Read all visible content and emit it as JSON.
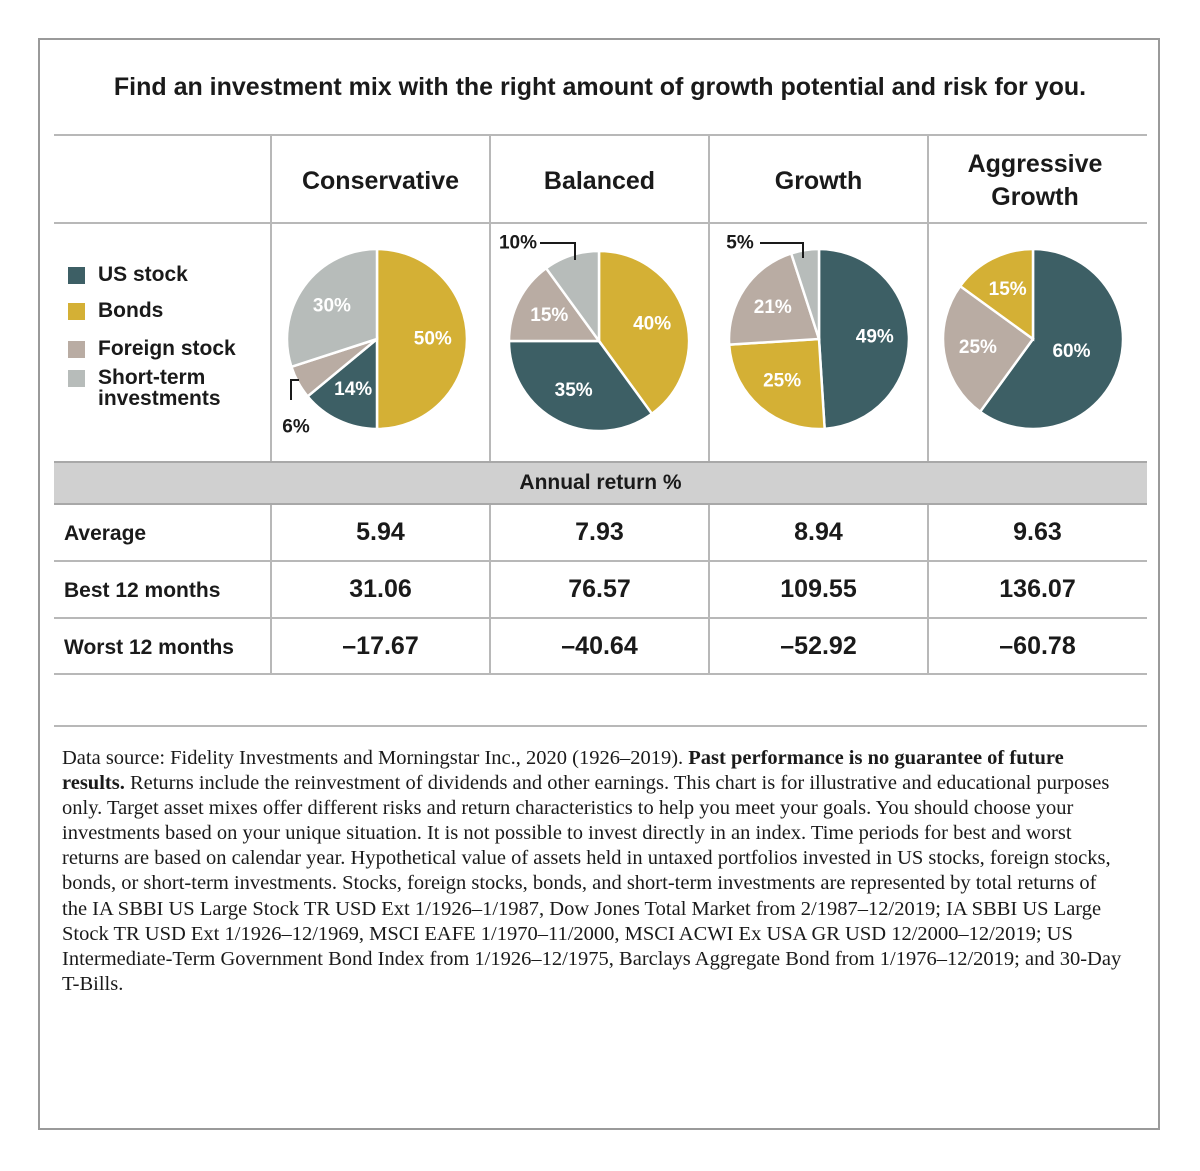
{
  "title": "Find an investment mix with the right amount of growth potential and risk for you.",
  "colors": {
    "us_stock": "#3d5f65",
    "bonds": "#d4b035",
    "foreign_stock": "#b9aca3",
    "short_term": "#b7bcba",
    "band": "#d0d0d0",
    "border": "#b8b8b8"
  },
  "legend": [
    {
      "key": "us_stock",
      "label": "US stock"
    },
    {
      "key": "bonds",
      "label": "Bonds"
    },
    {
      "key": "foreign_stock",
      "label": "Foreign stock"
    },
    {
      "key": "short_term",
      "label": "Short-term investments"
    }
  ],
  "columns": [
    "Conservative",
    "Balanced",
    "Growth",
    "Aggressive Growth"
  ],
  "band_label": "Annual return %",
  "rows": [
    {
      "label": "Average",
      "values": [
        "5.94",
        "7.93",
        "8.94",
        "9.63"
      ]
    },
    {
      "label": "Best 12 months",
      "values": [
        "31.06",
        "76.57",
        "109.55",
        "136.07"
      ]
    },
    {
      "label": "Worst 12 months",
      "values": [
        "–17.67",
        "–40.64",
        "–52.92",
        "–60.78"
      ]
    }
  ],
  "chart_data": [
    {
      "type": "pie",
      "title": "Conservative",
      "slices": [
        {
          "name": "Bonds",
          "key": "bonds",
          "value": 50,
          "label": "50%"
        },
        {
          "name": "US stock",
          "key": "us_stock",
          "value": 14,
          "label": "14%"
        },
        {
          "name": "Foreign stock",
          "key": "foreign_stock",
          "value": 6,
          "label": "6%"
        },
        {
          "name": "Short-term investments",
          "key": "short_term",
          "value": 30,
          "label": "30%"
        }
      ]
    },
    {
      "type": "pie",
      "title": "Balanced",
      "slices": [
        {
          "name": "Bonds",
          "key": "bonds",
          "value": 40,
          "label": "40%"
        },
        {
          "name": "US stock",
          "key": "us_stock",
          "value": 35,
          "label": "35%"
        },
        {
          "name": "Foreign stock",
          "key": "foreign_stock",
          "value": 15,
          "label": "15%"
        },
        {
          "name": "Short-term investments",
          "key": "short_term",
          "value": 10,
          "label": "10%"
        }
      ]
    },
    {
      "type": "pie",
      "title": "Growth",
      "slices": [
        {
          "name": "US stock",
          "key": "us_stock",
          "value": 49,
          "label": "49%"
        },
        {
          "name": "Bonds",
          "key": "bonds",
          "value": 25,
          "label": "25%"
        },
        {
          "name": "Foreign stock",
          "key": "foreign_stock",
          "value": 21,
          "label": "21%"
        },
        {
          "name": "Short-term investments",
          "key": "short_term",
          "value": 5,
          "label": "5%"
        }
      ]
    },
    {
      "type": "pie",
      "title": "Aggressive Growth",
      "slices": [
        {
          "name": "US stock",
          "key": "us_stock",
          "value": 60,
          "label": "60%"
        },
        {
          "name": "Foreign stock",
          "key": "foreign_stock",
          "value": 25,
          "label": "25%"
        },
        {
          "name": "Bonds",
          "key": "bonds",
          "value": 15,
          "label": "15%"
        }
      ]
    }
  ],
  "footnote": {
    "part1": "Data source: Fidelity Investments and Morningstar Inc., 2020 (1926–2019). ",
    "bold": "Past performance is no guarantee of future results.",
    "part2": " Returns include the reinvestment of dividends and other earnings. This chart is for illustrative and educational purposes only. Target asset mixes offer different risks and return characteristics to help you meet your goals. You should choose your investments based on your unique situation. It is not possible to invest directly in an index. Time periods for best and worst returns are based on calendar year. Hypothetical value of assets held in untaxed portfolios invested in US stocks, foreign stocks, bonds, or short-term investments. Stocks, foreign stocks, bonds, and short-term investments are represented by total returns of the IA SBBI US Large Stock TR USD Ext 1/1926–1/1987, Dow Jones Total Market from 2/1987–12/2019; IA SBBI US Large Stock TR USD Ext 1/1926–12/1969, MSCI EAFE 1/1970–11/2000, MSCI ACWI Ex USA GR USD 12/2000–12/2019; US Intermediate-Term Government Bond Index from 1/1926–12/1975, Barclays Aggregate Bond from 1/1976–12/2019; and 30-Day T-Bills."
  }
}
